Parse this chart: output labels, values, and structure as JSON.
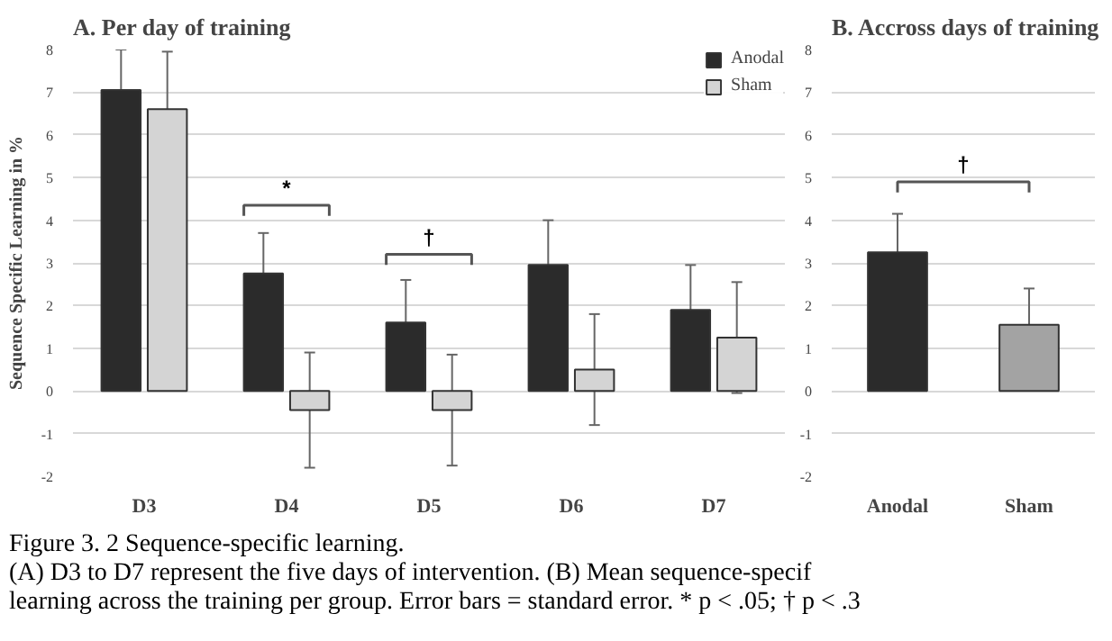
{
  "chart_data": [
    {
      "type": "bar",
      "title": "A. Per day of training",
      "ylabel": "Sequence Specific Learning in %",
      "categories": [
        "D3",
        "D4",
        "D5",
        "D6",
        "D7"
      ],
      "series": [
        {
          "name": "Anodal",
          "color": "#2b2b2b",
          "values": [
            7.05,
            2.75,
            1.6,
            2.95,
            1.9
          ],
          "errors": [
            0.95,
            0.95,
            1.0,
            1.05,
            1.05
          ]
        },
        {
          "name": "Sham",
          "color": "#d4d4d4",
          "values": [
            6.6,
            -0.45,
            -0.45,
            0.5,
            1.25
          ],
          "errors": [
            1.35,
            1.35,
            1.3,
            1.3,
            1.3
          ]
        }
      ],
      "ylim": [
        -2,
        8
      ],
      "yticks": [
        -2,
        -1,
        0,
        1,
        2,
        3,
        4,
        5,
        6,
        7,
        8
      ],
      "grid": "y",
      "legend": "top right",
      "annotations": [
        "*",
        "†",
        "Figure 3. 2   Sequence-specific learning.",
        "(A) D3 to D7 represent the five days of intervention. (B) Mean sequence-specif",
        "learning across the training per group. Error bars = standard error. * p < .05; † p < .3"
      ]
    },
    {
      "type": "bar",
      "title": "B. Accross days of training",
      "categories": [
        "Anodal",
        "Sham"
      ],
      "values": [
        3.25,
        1.55
      ],
      "errors": [
        0.9,
        0.85
      ],
      "colors": [
        "#2b2b2b",
        "#a3a3a3"
      ],
      "ylim": [
        -2,
        8
      ],
      "yticks": [
        -2,
        -1,
        0,
        1,
        2,
        3,
        4,
        5,
        6,
        7,
        8
      ],
      "grid": "y",
      "annotations": [
        "†"
      ]
    }
  ]
}
